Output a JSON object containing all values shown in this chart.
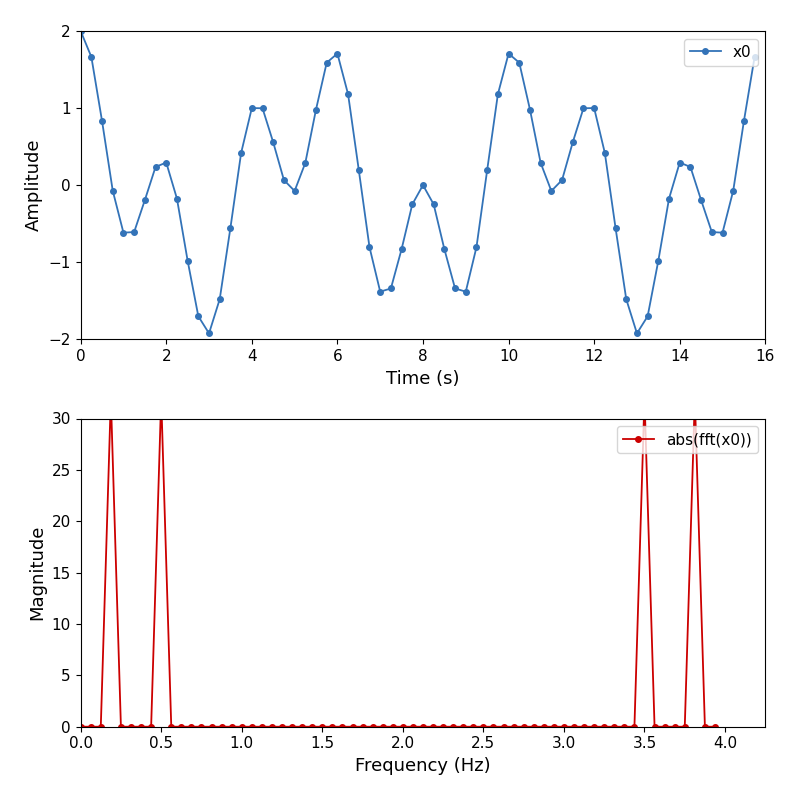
{
  "xlabel1": "Time (s)",
  "ylabel1": "Amplitude",
  "xlabel2": "Frequency (Hz)",
  "ylabel2": "Magnitude",
  "legend1": "x0",
  "legend2": "abs(fft(x0))",
  "line_color1": "#3373b8",
  "line_color2": "#cc0000",
  "f1": 0.1875,
  "f2": 0.5,
  "fs": 4,
  "duration": 16,
  "ylim1": [
    -2,
    2
  ],
  "xlim1": [
    0,
    16
  ],
  "ylim2": [
    0,
    30
  ],
  "xlim2": [
    0,
    4.25
  ],
  "figsize": [
    8.0,
    8.0
  ],
  "dpi": 100
}
